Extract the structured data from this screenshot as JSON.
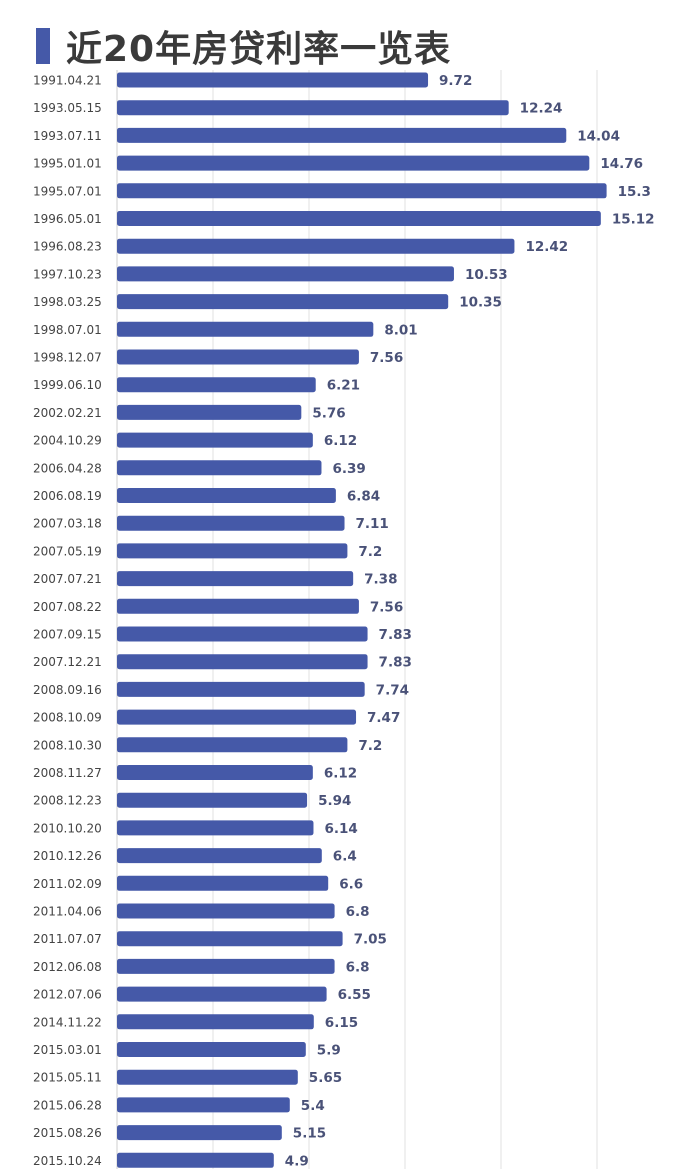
{
  "chart_data": {
    "type": "bar",
    "orientation": "horizontal",
    "title": "近20年房贷利率一览表",
    "categories": [
      "1991.04.21",
      "1993.05.15",
      "1993.07.11",
      "1995.01.01",
      "1995.07.01",
      "1996.05.01",
      "1996.08.23",
      "1997.10.23",
      "1998.03.25",
      "1998.07.01",
      "1998.12.07",
      "1999.06.10",
      "2002.02.21",
      "2004.10.29",
      "2006.04.28",
      "2006.08.19",
      "2007.03.18",
      "2007.05.19",
      "2007.07.21",
      "2007.08.22",
      "2007.09.15",
      "2007.12.21",
      "2008.09.16",
      "2008.10.09",
      "2008.10.30",
      "2008.11.27",
      "2008.12.23",
      "2010.10.20",
      "2010.12.26",
      "2011.02.09",
      "2011.04.06",
      "2011.07.07",
      "2012.06.08",
      "2012.07.06",
      "2014.11.22",
      "2015.03.01",
      "2015.05.11",
      "2015.06.28",
      "2015.08.26",
      "2015.10.24"
    ],
    "values": [
      9.72,
      12.24,
      14.04,
      14.76,
      15.3,
      15.12,
      12.42,
      10.53,
      10.35,
      8.01,
      7.56,
      6.21,
      5.76,
      6.12,
      6.39,
      6.84,
      7.11,
      7.2,
      7.38,
      7.56,
      7.83,
      7.83,
      7.74,
      7.47,
      7.2,
      6.12,
      5.94,
      6.14,
      6.4,
      6.6,
      6.8,
      7.05,
      6.8,
      6.55,
      6.15,
      5.9,
      5.65,
      5.4,
      5.15,
      4.9
    ],
    "value_labels": [
      "9.72",
      "12.24",
      "14.04",
      "14.76",
      "15.3",
      "15.12",
      "12.42",
      "10.53",
      "10.35",
      "8.01",
      "7.56",
      "6.21",
      "5.76",
      "6.12",
      "6.39",
      "6.84",
      "7.11",
      "7.2",
      "7.38",
      "7.56",
      "7.83",
      "7.83",
      "7.74",
      "7.47",
      "7.2",
      "6.12",
      "5.94",
      "6.14",
      "6.4",
      "6.6",
      "6.8",
      "7.05",
      "6.8",
      "6.55",
      "6.15",
      "5.9",
      "5.65",
      "5.4",
      "5.15",
      "4.9"
    ],
    "xlim": [
      0,
      16
    ],
    "grid": true,
    "legend": "none",
    "bar_color": "#4559a8",
    "label_color": "#4a5278"
  }
}
